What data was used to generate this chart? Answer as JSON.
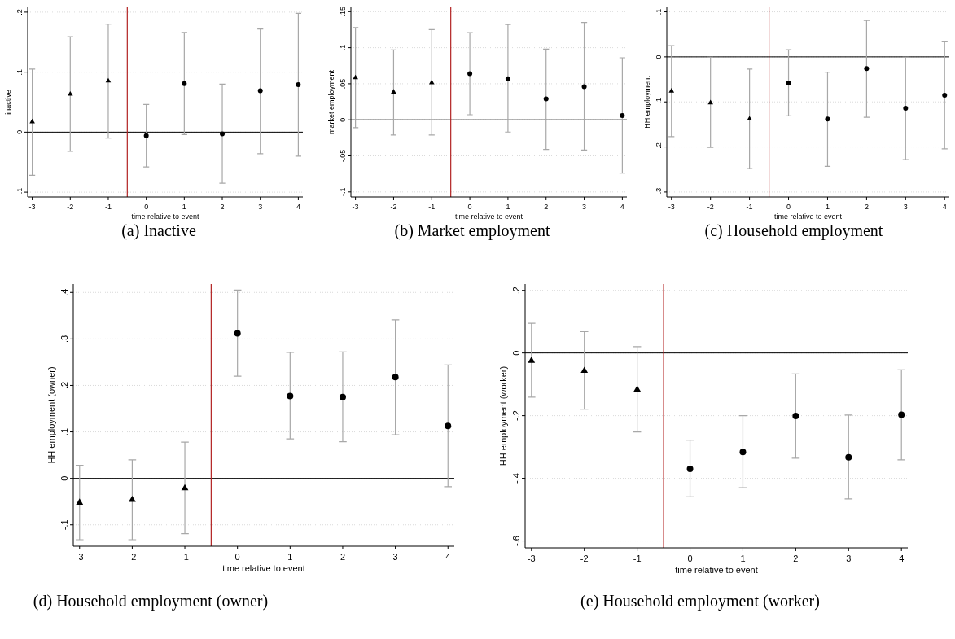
{
  "chart_data": [
    {
      "type": "scatter",
      "title": "(a) Inactive",
      "xlabel": "time relative to event",
      "ylabel": "inactive",
      "xlim": [
        -3.12,
        4.12
      ],
      "xticks": [
        -3,
        -2,
        -1,
        0,
        1,
        2,
        3,
        4
      ],
      "ylim": [
        -0.108,
        0.208
      ],
      "yticks": [
        {
          "value": -0.1,
          "label": "-.1"
        },
        {
          "value": 0,
          "label": "0"
        },
        {
          "value": 0.1,
          "label": ".1"
        },
        {
          "value": 0.2,
          "label": ".2"
        }
      ],
      "grid": "y",
      "series": [
        {
          "marker": "triangle",
          "color": "#000000",
          "x": [
            -3,
            -2,
            -1
          ],
          "values": [
            0.018,
            0.064,
            0.086
          ],
          "errors": [
            [
              -0.072,
              0.105
            ],
            [
              -0.032,
              0.159
            ],
            [
              -0.01,
              0.18
            ]
          ]
        },
        {
          "marker": "circle",
          "color": "#000000",
          "x": [
            0,
            1,
            2,
            3,
            4
          ],
          "values": [
            -0.006,
            0.081,
            -0.003,
            0.069,
            0.079
          ],
          "errors": [
            [
              -0.058,
              0.046
            ],
            [
              -0.004,
              0.166
            ],
            [
              -0.085,
              0.08
            ],
            [
              -0.036,
              0.172
            ],
            [
              -0.04,
              0.198
            ]
          ]
        }
      ],
      "ref_lines": [
        {
          "axis": "y",
          "value": 0,
          "color": "#000000"
        },
        {
          "axis": "x",
          "value": -0.5,
          "color": "#b22222"
        }
      ]
    },
    {
      "type": "scatter",
      "title": "(b) Market employment",
      "xlabel": "time relative to event",
      "ylabel": "market employment",
      "xlim": [
        -3.12,
        4.12
      ],
      "xticks": [
        -3,
        -2,
        -1,
        0,
        1,
        2,
        3,
        4
      ],
      "ylim": [
        -0.107,
        0.156
      ],
      "yticks": [
        {
          "value": -0.1,
          "label": "-.1"
        },
        {
          "value": -0.05,
          "label": "-.05"
        },
        {
          "value": 0,
          "label": "0"
        },
        {
          "value": 0.05,
          "label": ".05"
        },
        {
          "value": 0.1,
          "label": ".1"
        },
        {
          "value": 0.15,
          "label": ".15"
        }
      ],
      "grid": "y",
      "series": [
        {
          "marker": "triangle",
          "color": "#000000",
          "x": [
            -3,
            -2,
            -1
          ],
          "values": [
            0.059,
            0.039,
            0.052
          ],
          "errors": [
            [
              -0.011,
              0.128
            ],
            [
              -0.021,
              0.097
            ],
            [
              -0.021,
              0.125
            ]
          ]
        },
        {
          "marker": "circle",
          "color": "#000000",
          "x": [
            0,
            1,
            2,
            3,
            4
          ],
          "values": [
            0.064,
            0.057,
            0.029,
            0.046,
            0.006
          ],
          "errors": [
            [
              0.007,
              0.121
            ],
            [
              -0.017,
              0.132
            ],
            [
              -0.041,
              0.098
            ],
            [
              -0.042,
              0.135
            ],
            [
              -0.074,
              0.086
            ]
          ]
        }
      ],
      "ref_lines": [
        {
          "axis": "y",
          "value": 0,
          "color": "#000000"
        },
        {
          "axis": "x",
          "value": -0.5,
          "color": "#b22222"
        }
      ]
    },
    {
      "type": "scatter",
      "title": "(c) Household employment",
      "xlabel": "time relative to event",
      "ylabel": "HH employment",
      "xlim": [
        -3.12,
        4.12
      ],
      "xticks": [
        -3,
        -2,
        -1,
        0,
        1,
        2,
        3,
        4
      ],
      "ylim": [
        -0.311,
        0.11
      ],
      "yticks": [
        {
          "value": -0.3,
          "label": "-.3"
        },
        {
          "value": -0.2,
          "label": "-.2"
        },
        {
          "value": -0.1,
          "label": "-.1"
        },
        {
          "value": 0,
          "label": "0"
        },
        {
          "value": 0.1,
          "label": ".1"
        }
      ],
      "grid": "y",
      "series": [
        {
          "marker": "triangle",
          "color": "#000000",
          "x": [
            -3,
            -2,
            -1
          ],
          "values": [
            -0.075,
            -0.101,
            -0.137
          ],
          "errors": [
            [
              -0.177,
              0.025
            ],
            [
              -0.201,
              -0.001
            ],
            [
              -0.248,
              -0.027
            ]
          ]
        },
        {
          "marker": "circle",
          "color": "#000000",
          "x": [
            0,
            1,
            2,
            3,
            4
          ],
          "values": [
            -0.058,
            -0.138,
            -0.026,
            -0.114,
            -0.085
          ],
          "errors": [
            [
              -0.131,
              0.016
            ],
            [
              -0.243,
              -0.034
            ],
            [
              -0.134,
              0.081
            ],
            [
              -0.228,
              -0.001
            ],
            [
              -0.204,
              0.035
            ]
          ]
        }
      ],
      "ref_lines": [
        {
          "axis": "y",
          "value": 0,
          "color": "#000000"
        },
        {
          "axis": "x",
          "value": -0.5,
          "color": "#b22222"
        }
      ]
    },
    {
      "type": "scatter",
      "title": "(d) Household employment (owner)",
      "xlabel": "time relative to event",
      "ylabel": "HH employment (owner)",
      "xlim": [
        -3.12,
        4.12
      ],
      "xticks": [
        -3,
        -2,
        -1,
        0,
        1,
        2,
        3,
        4
      ],
      "ylim": [
        -0.146,
        0.418
      ],
      "yticks": [
        {
          "value": -0.1,
          "label": "-.1"
        },
        {
          "value": 0,
          "label": "0"
        },
        {
          "value": 0.1,
          "label": ".1"
        },
        {
          "value": 0.2,
          "label": ".2"
        },
        {
          "value": 0.3,
          "label": ".3"
        },
        {
          "value": 0.4,
          "label": ".4"
        }
      ],
      "grid": "y",
      "series": [
        {
          "marker": "triangle",
          "color": "#000000",
          "x": [
            -3,
            -2,
            -1
          ],
          "values": [
            -0.051,
            -0.045,
            -0.02
          ],
          "errors": [
            [
              -0.132,
              0.028
            ],
            [
              -0.132,
              0.04
            ],
            [
              -0.119,
              0.078
            ]
          ]
        },
        {
          "marker": "circle",
          "color": "#000000",
          "x": [
            0,
            1,
            2,
            3,
            4
          ],
          "values": [
            0.312,
            0.177,
            0.175,
            0.218,
            0.113
          ],
          "errors": [
            [
              0.22,
              0.405
            ],
            [
              0.085,
              0.271
            ],
            [
              0.079,
              0.272
            ],
            [
              0.094,
              0.341
            ],
            [
              -0.018,
              0.244
            ]
          ]
        }
      ],
      "ref_lines": [
        {
          "axis": "y",
          "value": 0,
          "color": "#000000"
        },
        {
          "axis": "x",
          "value": -0.5,
          "color": "#b22222"
        }
      ]
    },
    {
      "type": "scatter",
      "title": "(e) Household employment (worker)",
      "xlabel": "time relative to event",
      "ylabel": "HH employment (worker)",
      "xlim": [
        -3.12,
        4.12
      ],
      "xticks": [
        -3,
        -2,
        -1,
        0,
        1,
        2,
        3,
        4
      ],
      "ylim": [
        -0.622,
        0.22
      ],
      "yticks": [
        {
          "value": -0.6,
          "label": "-.6"
        },
        {
          "value": -0.4,
          "label": "-.4"
        },
        {
          "value": -0.2,
          "label": "-.2"
        },
        {
          "value": 0,
          "label": "0"
        },
        {
          "value": 0.2,
          "label": ".2"
        }
      ],
      "grid": "y",
      "series": [
        {
          "marker": "triangle",
          "color": "#000000",
          "x": [
            -3,
            -2,
            -1
          ],
          "values": [
            -0.023,
            -0.055,
            -0.115
          ],
          "errors": [
            [
              -0.141,
              0.095
            ],
            [
              -0.179,
              0.068
            ],
            [
              -0.252,
              0.02
            ]
          ]
        },
        {
          "marker": "circle",
          "color": "#000000",
          "x": [
            0,
            1,
            2,
            3,
            4
          ],
          "values": [
            -0.37,
            -0.316,
            -0.201,
            -0.333,
            -0.197
          ],
          "errors": [
            [
              -0.459,
              -0.278
            ],
            [
              -0.43,
              -0.2
            ],
            [
              -0.336,
              -0.067
            ],
            [
              -0.466,
              -0.198
            ],
            [
              -0.341,
              -0.054
            ]
          ]
        }
      ],
      "ref_lines": [
        {
          "axis": "y",
          "value": 0,
          "color": "#000000"
        },
        {
          "axis": "x",
          "value": -0.5,
          "color": "#b22222"
        }
      ]
    }
  ]
}
